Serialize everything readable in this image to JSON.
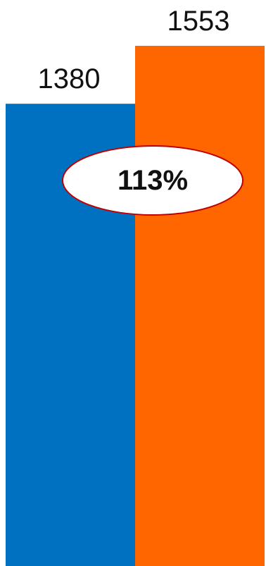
{
  "chart_data": {
    "type": "bar",
    "categories": [
      "",
      ""
    ],
    "values": [
      1380,
      1553
    ],
    "data_labels": [
      "1380",
      "1553"
    ],
    "colors": [
      "#0070C0",
      "#FF6600"
    ],
    "title": "",
    "xlabel": "",
    "ylabel": "",
    "ylim": [
      0,
      1553
    ],
    "grid": false,
    "legend": "none",
    "annotation": {
      "text": "113%",
      "shape": "ellipse",
      "fill": "#ffffff",
      "stroke": "#C00000"
    }
  }
}
